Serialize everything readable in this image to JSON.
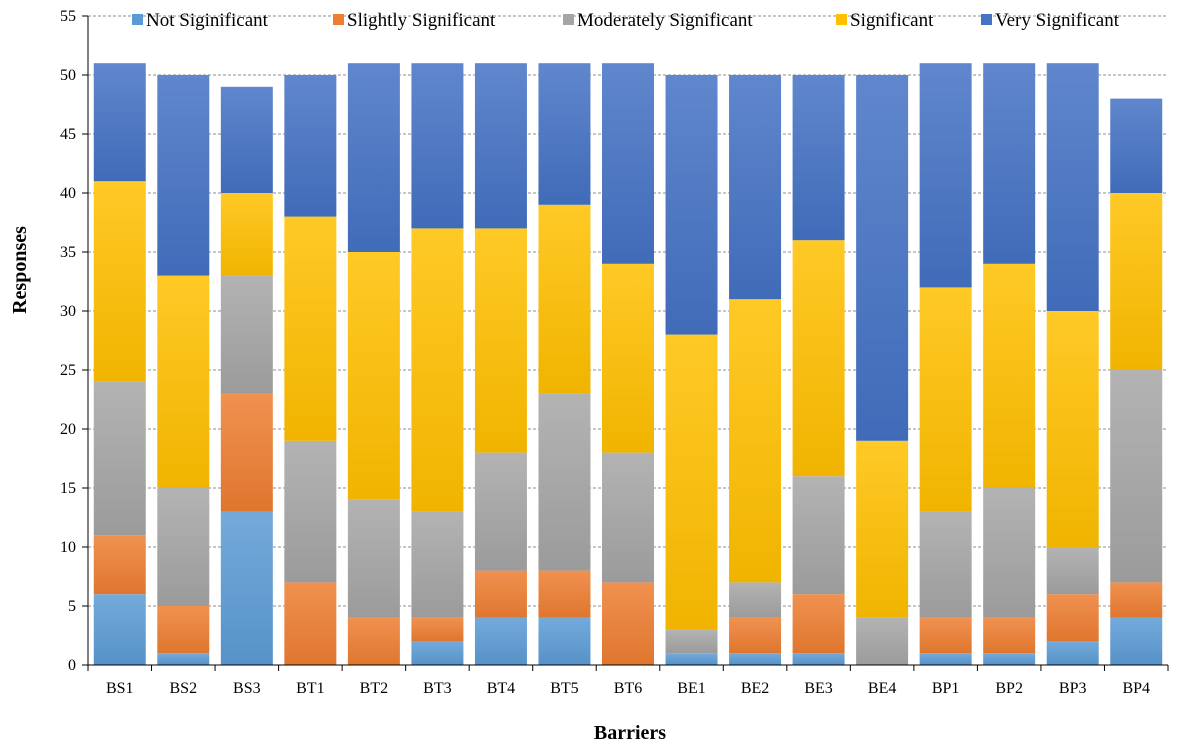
{
  "chart_data": {
    "type": "bar",
    "stacked": true,
    "title": "",
    "xlabel": "Barriers",
    "ylabel": "Responses",
    "ylim": [
      0,
      55
    ],
    "yticks": [
      0,
      5,
      10,
      15,
      20,
      25,
      30,
      35,
      40,
      45,
      50,
      55
    ],
    "grid": "horizontal dashed",
    "legend_position": "top",
    "categories": [
      "BS1",
      "BS2",
      "BS3",
      "BT1",
      "BT2",
      "BT3",
      "BT4",
      "BT5",
      "BT6",
      "BE1",
      "BE2",
      "BE3",
      "BE4",
      "BP1",
      "BP2",
      "BP3",
      "BP4"
    ],
    "series": [
      {
        "name": "Not Siginificant",
        "color": "#5b9bd5",
        "values": [
          6,
          1,
          13,
          0,
          0,
          2,
          4,
          4,
          0,
          1,
          1,
          1,
          0,
          1,
          1,
          2,
          4
        ]
      },
      {
        "name": "Slightly Significant",
        "color": "#ed7d31",
        "values": [
          5,
          4,
          10,
          7,
          4,
          2,
          4,
          4,
          7,
          0,
          3,
          5,
          0,
          3,
          3,
          4,
          3
        ]
      },
      {
        "name": "Moderately Significant",
        "color": "#a5a5a5",
        "values": [
          13,
          10,
          10,
          12,
          10,
          9,
          10,
          15,
          11,
          2,
          3,
          10,
          4,
          9,
          11,
          4,
          18
        ]
      },
      {
        "name": "Significant",
        "color": "#ffc000",
        "values": [
          17,
          18,
          7,
          19,
          21,
          24,
          19,
          16,
          16,
          25,
          24,
          20,
          15,
          19,
          19,
          20,
          15
        ]
      },
      {
        "name": "Very Significant",
        "color": "#4472c4",
        "values": [
          10,
          17,
          9,
          12,
          16,
          14,
          14,
          12,
          17,
          22,
          19,
          14,
          31,
          19,
          17,
          21,
          8
        ]
      }
    ]
  }
}
